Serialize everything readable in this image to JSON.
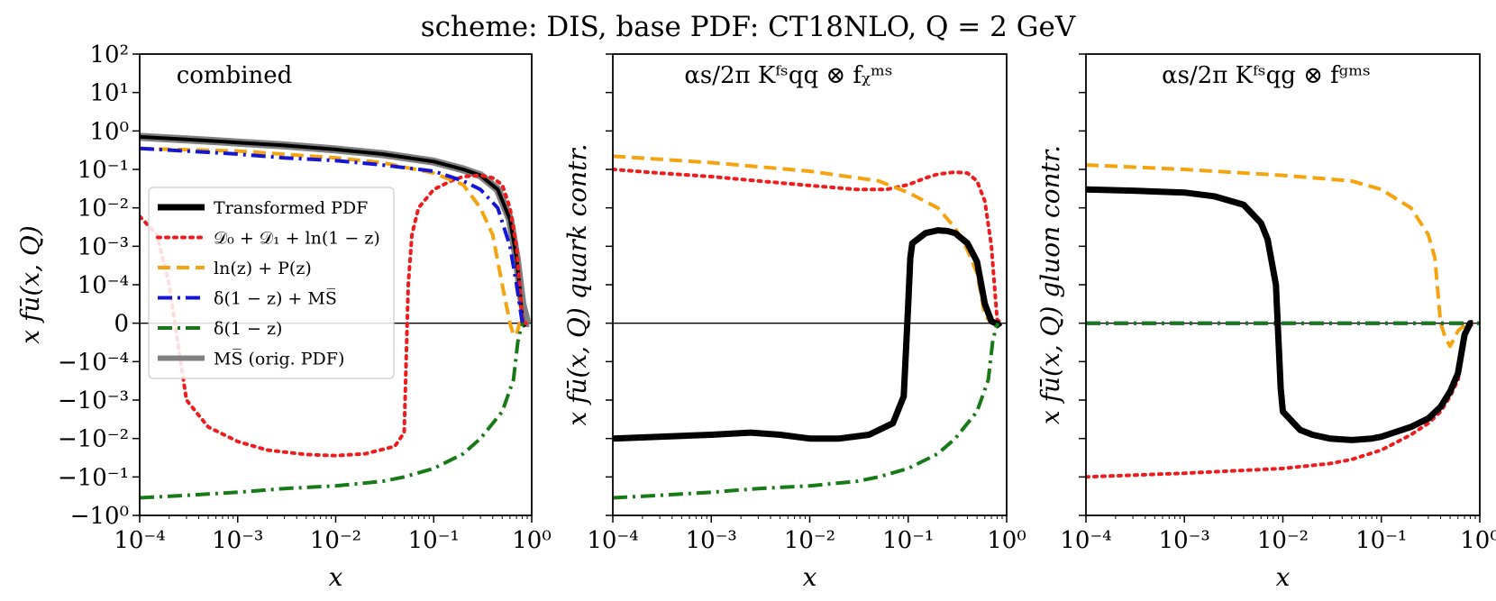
{
  "figure": {
    "title": "scheme: DIS, base PDF: CT18NLO, Q = 2 GeV",
    "x_tick_labels": [
      "10⁻⁴",
      "10⁻³",
      "10⁻²",
      "10⁻¹",
      "10⁰"
    ],
    "y_tick_labels": [
      "10²",
      "10¹",
      "10⁰",
      "10⁻¹",
      "10⁻²",
      "10⁻³",
      "10⁻⁴",
      "0",
      "−10⁻⁴",
      "−10⁻³",
      "−10⁻²",
      "−10⁻¹",
      "−10⁰"
    ]
  },
  "colors": {
    "transformed": "#000000",
    "soft": "#ee1c1c",
    "logp": "#f5a410",
    "delta_msbar": "#1515d8",
    "delta": "#177a17",
    "msbar": "#808080"
  },
  "chart_data": [
    {
      "type": "line",
      "panel": "combined",
      "annotation": "combined",
      "xlabel": "x",
      "ylabel": "x fū(x, Q)",
      "xscale": "log",
      "yscale": "symlog",
      "xlim": [
        0.0001,
        1.0
      ],
      "ylim": [
        -1.0,
        100.0
      ],
      "linthresh": 0.0001,
      "legend": {
        "position": "center-left",
        "entries": [
          "Transformed PDF",
          "𝒟₀ + 𝒟₁ + ln(1 − z)",
          "ln(z) + P(z)",
          "δ(1 − z) + MS̅",
          "δ(1 − z)",
          "MS̅ (orig. PDF)"
        ]
      },
      "series": [
        {
          "name": "MS̅ (orig. PDF)",
          "color_key": "msbar",
          "style": "solid",
          "width": 9,
          "x": [
            0.0001,
            0.0003,
            0.001,
            0.003,
            0.01,
            0.03,
            0.1,
            0.2,
            0.3,
            0.45,
            0.6,
            0.7,
            0.8,
            0.9,
            0.95
          ],
          "y": [
            0.7,
            0.6,
            0.5,
            0.42,
            0.33,
            0.25,
            0.16,
            0.1,
            0.07,
            0.03,
            0.005,
            0.0005,
            5e-05,
            5e-07,
            0
          ]
        },
        {
          "name": "Transformed PDF",
          "color_key": "transformed",
          "style": "solid",
          "width": 4,
          "x": [
            0.0001,
            0.0003,
            0.001,
            0.003,
            0.01,
            0.03,
            0.1,
            0.2,
            0.3,
            0.45,
            0.6,
            0.7,
            0.75,
            0.8,
            0.82,
            0.85
          ],
          "y": [
            0.7,
            0.6,
            0.5,
            0.42,
            0.33,
            0.25,
            0.16,
            0.1,
            0.07,
            0.03,
            0.005,
            0.0005,
            0.0001,
            1e-05,
            0,
            -1e-05
          ]
        },
        {
          "name": "𝒟₀ + 𝒟₁ + ln(1 − z)",
          "color_key": "soft",
          "style": "dotted",
          "width": 4,
          "x": [
            0.0001,
            0.00015,
            0.0002,
            0.0003,
            0.0005,
            0.001,
            0.002,
            0.005,
            0.01,
            0.02,
            0.04,
            0.05,
            0.055,
            0.06,
            0.07,
            0.1,
            0.15,
            0.2,
            0.3,
            0.4,
            0.5,
            0.6,
            0.7,
            0.8,
            0.85,
            0.88
          ],
          "y": [
            0.006,
            0.002,
            0.0001,
            -0.001,
            -0.005,
            -0.012,
            -0.02,
            -0.026,
            -0.028,
            -0.025,
            -0.016,
            -0.007,
            0.0001,
            0.002,
            0.01,
            0.03,
            0.05,
            0.065,
            0.07,
            0.06,
            0.04,
            0.01,
            0.001,
            1e-05,
            0,
            0
          ]
        },
        {
          "name": "ln(z) + P(z)",
          "color_key": "logp",
          "style": "dashed",
          "width": 4,
          "x": [
            0.0001,
            0.001,
            0.01,
            0.03,
            0.1,
            0.2,
            0.3,
            0.4,
            0.5,
            0.6,
            0.65,
            0.7,
            0.75,
            0.8
          ],
          "y": [
            0.35,
            0.3,
            0.2,
            0.15,
            0.08,
            0.04,
            0.01,
            0.002,
            0.0001,
            0,
            -3e-05,
            -3e-05,
            0,
            0
          ]
        },
        {
          "name": "δ(1 − z) + MS̅",
          "color_key": "delta_msbar",
          "style": "dashdot",
          "width": 4,
          "x": [
            0.0001,
            0.0003,
            0.001,
            0.003,
            0.01,
            0.03,
            0.1,
            0.2,
            0.3,
            0.45,
            0.6,
            0.7,
            0.8,
            0.85
          ],
          "y": [
            0.35,
            0.3,
            0.25,
            0.2,
            0.17,
            0.13,
            0.09,
            0.05,
            0.03,
            0.01,
            0.001,
            0.0001,
            1e-06,
            0
          ]
        },
        {
          "name": "δ(1 − z)",
          "color_key": "delta",
          "style": "dashdot",
          "width": 4,
          "x": [
            0.0001,
            0.0003,
            0.001,
            0.003,
            0.01,
            0.03,
            0.05,
            0.1,
            0.2,
            0.3,
            0.5,
            0.65,
            0.72,
            0.78,
            0.82
          ],
          "y": [
            -0.35,
            -0.3,
            -0.25,
            -0.2,
            -0.17,
            -0.13,
            -0.1,
            -0.06,
            -0.025,
            -0.01,
            -0.002,
            -0.0003,
            -5e-05,
            -1e-05,
            0
          ]
        }
      ]
    },
    {
      "type": "line",
      "panel": "quark",
      "annotation": "αs/2π Kᶠˢqq ⊗ fᵪᵐˢ",
      "xlabel": "x",
      "ylabel": "x fū(x, Q) quark contr.",
      "xscale": "log",
      "yscale": "symlog",
      "xlim": [
        0.0001,
        1.0
      ],
      "ylim": [
        -1.0,
        100.0
      ],
      "linthresh": 0.0001,
      "series": [
        {
          "name": "𝒟₀ + 𝒟₁ + ln(1 − z)",
          "color_key": "soft",
          "style": "dotted",
          "width": 4,
          "x": [
            0.0001,
            0.0003,
            0.001,
            0.003,
            0.01,
            0.03,
            0.06,
            0.1,
            0.15,
            0.2,
            0.3,
            0.4,
            0.5,
            0.6,
            0.7,
            0.8,
            0.88
          ],
          "y": [
            0.1,
            0.08,
            0.065,
            0.05,
            0.038,
            0.03,
            0.03,
            0.04,
            0.06,
            0.075,
            0.085,
            0.08,
            0.05,
            0.015,
            0.001,
            1e-05,
            0
          ]
        },
        {
          "name": "ln(z) + P(z)",
          "color_key": "logp",
          "style": "dashed",
          "width": 4,
          "x": [
            0.0001,
            0.001,
            0.01,
            0.05,
            0.1,
            0.2,
            0.3,
            0.4,
            0.5,
            0.6,
            0.7,
            0.78,
            0.82
          ],
          "y": [
            0.22,
            0.15,
            0.09,
            0.05,
            0.025,
            0.01,
            0.003,
            0.0008,
            0.0002,
            2e-05,
            1e-06,
            0,
            0
          ]
        },
        {
          "name": "Transformed PDF",
          "color_key": "transformed",
          "style": "solid",
          "width": 7,
          "x": [
            0.0001,
            0.001,
            0.0025,
            0.005,
            0.01,
            0.02,
            0.04,
            0.07,
            0.09,
            0.1,
            0.105,
            0.11,
            0.15,
            0.2,
            0.25,
            0.3,
            0.4,
            0.5,
            0.6,
            0.7,
            0.75,
            0.8,
            0.85
          ],
          "y": [
            -0.01,
            -0.008,
            -0.007,
            -0.008,
            -0.01,
            -0.01,
            -0.008,
            -0.004,
            -0.0008,
            5e-05,
            0.0005,
            0.0012,
            0.0022,
            0.0026,
            0.0025,
            0.0022,
            0.0012,
            0.0004,
            5e-05,
            5e-06,
            1e-06,
            0,
            -1e-05
          ]
        },
        {
          "name": "δ(1 − z)",
          "color_key": "delta",
          "style": "dashdot",
          "width": 4,
          "x": [
            0.0001,
            0.0003,
            0.001,
            0.003,
            0.01,
            0.03,
            0.05,
            0.1,
            0.2,
            0.3,
            0.5,
            0.65,
            0.72,
            0.78,
            0.82
          ],
          "y": [
            -0.35,
            -0.3,
            -0.25,
            -0.2,
            -0.17,
            -0.13,
            -0.1,
            -0.06,
            -0.025,
            -0.01,
            -0.002,
            -0.0003,
            -5e-05,
            -1e-05,
            0
          ]
        }
      ]
    },
    {
      "type": "line",
      "panel": "gluon",
      "annotation": "αs/2π Kᶠˢqg ⊗ fᵍᵐˢ",
      "xlabel": "x",
      "ylabel": "x fū(x, Q) gluon contr.",
      "xscale": "log",
      "yscale": "symlog",
      "xlim": [
        0.0001,
        1.0
      ],
      "ylim": [
        -1.0,
        100.0
      ],
      "linthresh": 0.0001,
      "series": [
        {
          "name": "ln(z) + P(z)",
          "color_key": "logp",
          "style": "dashed",
          "width": 4,
          "x": [
            0.0001,
            0.001,
            0.01,
            0.05,
            0.1,
            0.2,
            0.3,
            0.35,
            0.4,
            0.45,
            0.5,
            0.55,
            0.6,
            0.7,
            0.8
          ],
          "y": [
            0.13,
            0.1,
            0.07,
            0.05,
            0.03,
            0.01,
            0.002,
            0.0005,
            0,
            -4e-05,
            -6e-05,
            -4e-05,
            -2e-05,
            -5e-06,
            0
          ]
        },
        {
          "name": "δ(1 − z) + MS̅",
          "color_key": "delta_msbar",
          "style": "dashdot",
          "width": 4,
          "x": [
            0.0001,
            1.0
          ],
          "y": [
            0,
            0
          ]
        },
        {
          "name": "δ(1 − z)",
          "color_key": "delta",
          "style": "dashdot",
          "width": 4,
          "x": [
            0.0001,
            1.0
          ],
          "y": [
            0,
            0
          ]
        },
        {
          "name": "𝒟₀ + 𝒟₁ + ln(1 − z)",
          "color_key": "soft",
          "style": "dotted",
          "width": 4,
          "x": [
            0.0001,
            0.001,
            0.01,
            0.03,
            0.05,
            0.1,
            0.2,
            0.3,
            0.4,
            0.5,
            0.6,
            0.7,
            0.75,
            0.8,
            0.85
          ],
          "y": [
            -0.1,
            -0.08,
            -0.06,
            -0.045,
            -0.035,
            -0.02,
            -0.008,
            -0.004,
            -0.002,
            -0.0008,
            -0.0003,
            -5e-05,
            -1e-05,
            0,
            0
          ]
        },
        {
          "name": "Transformed PDF",
          "color_key": "transformed",
          "style": "solid",
          "width": 7,
          "x": [
            0.0001,
            0.0003,
            0.001,
            0.002,
            0.004,
            0.006,
            0.007,
            0.0085,
            0.0095,
            0.01,
            0.015,
            0.02,
            0.03,
            0.05,
            0.08,
            0.1,
            0.2,
            0.3,
            0.4,
            0.5,
            0.6,
            0.7,
            0.8,
            0.85
          ],
          "y": [
            0.03,
            0.028,
            0.025,
            0.02,
            0.012,
            0.004,
            0.0015,
            0.0001,
            -0.0005,
            -0.002,
            -0.006,
            -0.008,
            -0.01,
            -0.011,
            -0.01,
            -0.009,
            -0.005,
            -0.003,
            -0.0015,
            -0.0006,
            -0.0002,
            -3e-05,
            0,
            0
          ]
        }
      ]
    }
  ]
}
